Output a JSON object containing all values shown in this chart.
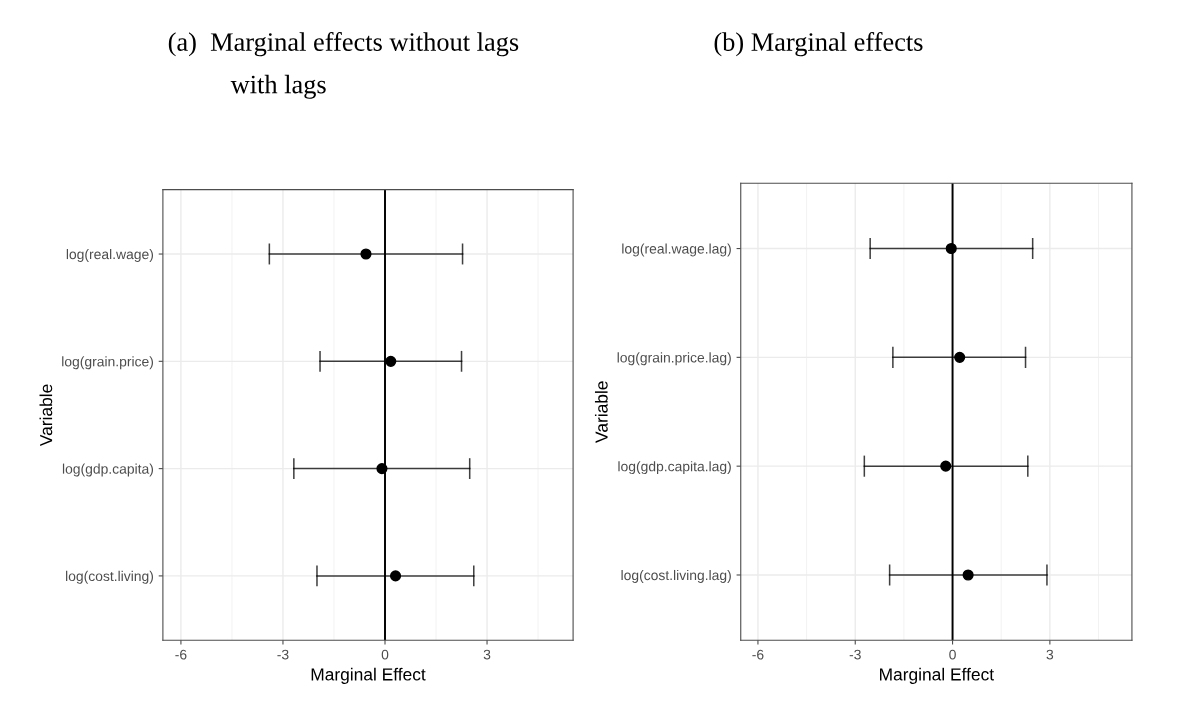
{
  "chart_data": [
    {
      "type": "scatter",
      "title": "(a)  Marginal effects without lags",
      "subtitle": "with lags",
      "xlabel": "Marginal Effect",
      "ylabel": "Variable",
      "orientation": "horizontal",
      "categories": [
        "log(real.wage)",
        "log(grain.price)",
        "log(gdp.capita)",
        "log(cost.living)"
      ],
      "series": [
        {
          "color": "#000000",
          "values": [
            -0.56,
            0.17,
            -0.09,
            0.31
          ],
          "errors": [
            [
              -3.4,
              2.28
            ],
            [
              -1.91,
              2.25
            ],
            [
              -2.68,
              2.49
            ],
            [
              -2.0,
              2.61
            ]
          ]
        }
      ],
      "xlim": [
        -6.53,
        5.53
      ],
      "xticks": [
        -6,
        -3,
        0,
        3
      ],
      "grid": true,
      "marker": "circle",
      "ref_lines": [
        {
          "axis": "x",
          "value": 0,
          "color": "#000000"
        }
      ]
    },
    {
      "type": "scatter",
      "title": "(b) Marginal effects",
      "xlabel": "Marginal Effect",
      "ylabel": "Variable",
      "orientation": "horizontal",
      "categories": [
        "log(real.wage.lag)",
        "log(grain.price.lag)",
        "log(gdp.capita.lag)",
        "log(cost.living.lag)"
      ],
      "series": [
        {
          "color": "#000000",
          "values": [
            -0.04,
            0.22,
            -0.21,
            0.48
          ],
          "errors": [
            [
              -2.54,
              2.47
            ],
            [
              -1.84,
              2.25
            ],
            [
              -2.72,
              2.32
            ],
            [
              -1.94,
              2.91
            ]
          ]
        }
      ],
      "xlim": [
        -6.53,
        5.53
      ],
      "xticks": [
        -6,
        -3,
        0,
        3
      ],
      "grid": true,
      "marker": "circle",
      "ref_lines": [
        {
          "axis": "x",
          "value": 0,
          "color": "#000000"
        }
      ]
    }
  ]
}
